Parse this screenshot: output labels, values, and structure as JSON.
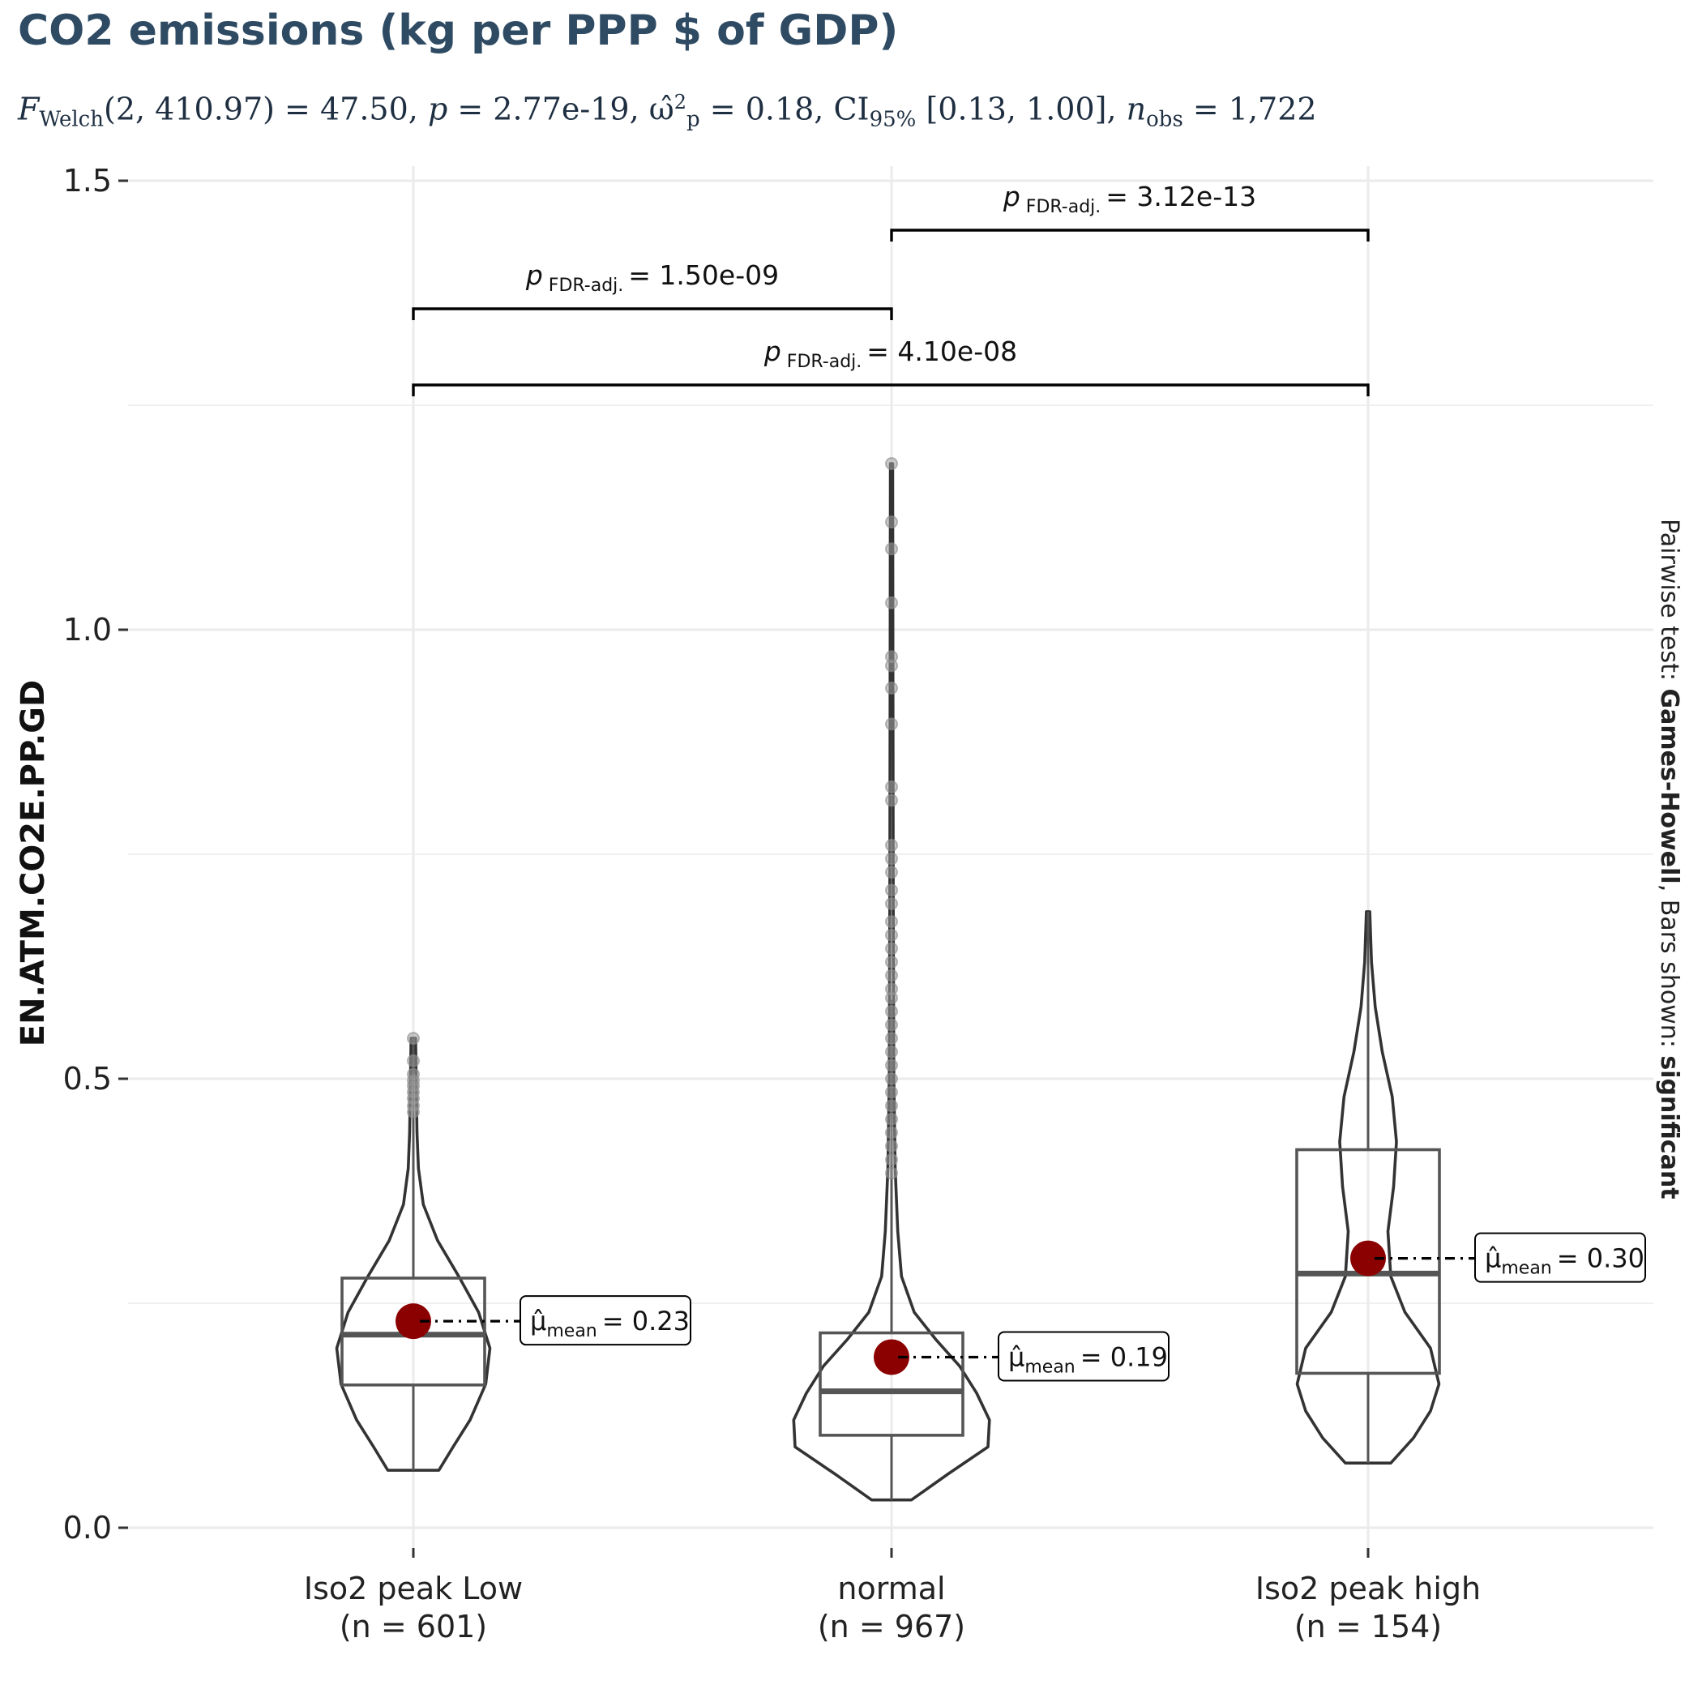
{
  "chart_data": {
    "type": "violin",
    "title": "CO2 emissions (kg per PPP $ of GDP)",
    "subtitle": {
      "stat_name": "F",
      "stat_sub": "Welch",
      "df": "(2, 410.97)",
      "stat_value": "= 47.50,",
      "p_label": "p",
      "p_value": "= 2.77e-19,",
      "effect_symbol": "ω̂",
      "effect_sup": "2",
      "effect_sub": "p",
      "effect_value": "= 0.18, CI",
      "ci_sub": "95%",
      "ci_value": "[0.13, 1.00],",
      "n_label": "n",
      "n_sub": "obs",
      "n_value": "= 1,722"
    },
    "ylabel": "EN.ATM.CO2E.PP.GD",
    "ylim": [
      0,
      1.5
    ],
    "yticks": [
      0.0,
      0.5,
      1.0,
      1.5
    ],
    "ytick_labels": [
      "0.0",
      "0.5",
      "1.0",
      "1.5"
    ],
    "grid": true,
    "groups": [
      {
        "category": "Iso2 peak  Low",
        "n_label": "(n = 601)",
        "min": 0.064,
        "q1": 0.159,
        "median": 0.215,
        "q3": 0.278,
        "max": 0.545,
        "mean": 0.23,
        "mean_label": "= 0.23",
        "outliers": [
          0.545,
          0.52,
          0.505,
          0.498,
          0.492,
          0.485,
          0.478,
          0.47,
          0.463
        ],
        "violin": [
          [
            0.064,
            0.09
          ],
          [
            0.09,
            0.14
          ],
          [
            0.12,
            0.2
          ],
          [
            0.16,
            0.255
          ],
          [
            0.2,
            0.27
          ],
          [
            0.24,
            0.23
          ],
          [
            0.28,
            0.16
          ],
          [
            0.32,
            0.085
          ],
          [
            0.36,
            0.035
          ],
          [
            0.4,
            0.018
          ],
          [
            0.44,
            0.013
          ],
          [
            0.5,
            0.01
          ],
          [
            0.545,
            0.008
          ]
        ]
      },
      {
        "category": "normal",
        "n_label": "(n = 967)",
        "min": 0.031,
        "q1": 0.103,
        "median": 0.152,
        "q3": 0.217,
        "max": 1.185,
        "mean": 0.19,
        "mean_label": "= 0.19",
        "outliers": [
          1.185,
          1.12,
          1.09,
          1.03,
          0.97,
          0.96,
          0.935,
          0.895,
          0.825,
          0.81,
          0.76,
          0.745,
          0.73,
          0.71,
          0.695,
          0.675,
          0.66,
          0.645,
          0.63,
          0.615,
          0.6,
          0.59,
          0.575,
          0.56,
          0.545,
          0.53,
          0.515,
          0.5,
          0.485,
          0.47,
          0.455,
          0.44,
          0.425,
          0.41,
          0.395
        ],
        "violin": [
          [
            0.031,
            0.07
          ],
          [
            0.06,
            0.2
          ],
          [
            0.09,
            0.34
          ],
          [
            0.12,
            0.345
          ],
          [
            0.15,
            0.3
          ],
          [
            0.18,
            0.24
          ],
          [
            0.21,
            0.155
          ],
          [
            0.24,
            0.08
          ],
          [
            0.28,
            0.035
          ],
          [
            0.33,
            0.022
          ],
          [
            0.4,
            0.013
          ],
          [
            0.5,
            0.008
          ],
          [
            0.7,
            0.006
          ],
          [
            1.185,
            0.004
          ]
        ]
      },
      {
        "category": "Iso2 peak  high",
        "n_label": "(n = 154)",
        "min": 0.072,
        "q1": 0.172,
        "median": 0.283,
        "q3": 0.421,
        "max": 0.686,
        "mean": 0.3,
        "mean_label": "= 0.30",
        "outliers": [],
        "violin": [
          [
            0.072,
            0.08
          ],
          [
            0.1,
            0.16
          ],
          [
            0.13,
            0.22
          ],
          [
            0.16,
            0.25
          ],
          [
            0.2,
            0.22
          ],
          [
            0.24,
            0.13
          ],
          [
            0.28,
            0.08
          ],
          [
            0.33,
            0.07
          ],
          [
            0.38,
            0.09
          ],
          [
            0.43,
            0.1
          ],
          [
            0.48,
            0.085
          ],
          [
            0.53,
            0.05
          ],
          [
            0.58,
            0.025
          ],
          [
            0.63,
            0.012
          ],
          [
            0.686,
            0.006
          ]
        ]
      }
    ],
    "mean_symbol": "μ̂",
    "mean_sub": "mean",
    "pairwise": [
      {
        "from": 0,
        "to": 1,
        "p_label": "p",
        "p_sub": "FDR-adj.",
        "p_value": "= 1.50e-09"
      },
      {
        "from": 1,
        "to": 2,
        "p_label": "p",
        "p_sub": "FDR-adj.",
        "p_value": "= 3.12e-13"
      },
      {
        "from": 0,
        "to": 2,
        "p_label": "p",
        "p_sub": "FDR-adj.",
        "p_value": "= 4.10e-08"
      }
    ],
    "caption": {
      "prefix": "Pairwise test: ",
      "test": "Games-Howell",
      "middle": ", Bars shown: ",
      "shown": "significant"
    },
    "colors": {
      "mean_point": "#8b0000",
      "violin_stroke": "#333333",
      "box_stroke": "#555555",
      "outlier": "#9e9e9e",
      "title": "#2f4b63"
    }
  }
}
